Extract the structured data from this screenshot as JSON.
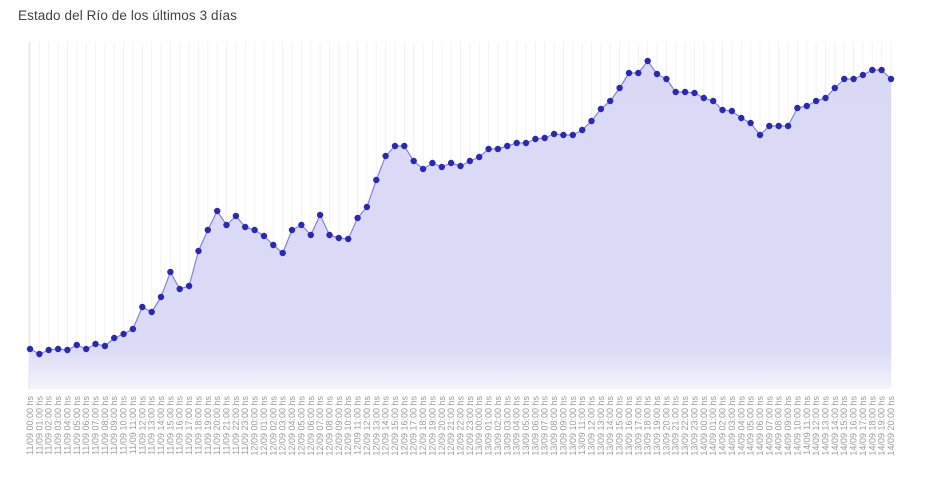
{
  "page": {
    "title": "Estado del Río de los últimos 3 días"
  },
  "chart_data": {
    "type": "area",
    "title": "Estado del Río de los últimos 3 días",
    "xlabel": "",
    "ylabel": "",
    "legend": "none",
    "grid": "vertical-faint",
    "y_tick_labels_visible": false,
    "ylim": [
      0,
      347
    ],
    "x_labels": [
      "11/09 00:00 hs",
      "11/09 01:00 hs",
      "11/09 02:00 hs",
      "11/09 03:00 hs",
      "11/09 04:00 hs",
      "11/09 05:00 hs",
      "11/09 06:00 hs",
      "11/09 07:00 hs",
      "11/09 08:00 hs",
      "11/09 09:00 hs",
      "11/09 10:00 hs",
      "11/09 11:00 hs",
      "11/09 12:00 hs",
      "11/09 13:00 hs",
      "11/09 14:00 hs",
      "11/09 15:00 hs",
      "11/09 16:00 hs",
      "11/09 17:00 hs",
      "11/09 18:00 hs",
      "11/09 19:00 hs",
      "11/09 20:00 hs",
      "11/09 21:00 hs",
      "11/09 22:00 hs",
      "11/09 23:00 hs",
      "12/09 00:00 hs",
      "12/09 01:00 hs",
      "12/09 02:00 hs",
      "12/09 03:00 hs",
      "12/09 04:00 hs",
      "12/09 05:00 hs",
      "12/09 06:00 hs",
      "12/09 07:00 hs",
      "12/09 08:00 hs",
      "12/09 09:00 hs",
      "12/09 10:00 hs",
      "12/09 11:00 hs",
      "12/09 12:00 hs",
      "12/09 13:00 hs",
      "12/09 14:00 hs",
      "12/09 15:00 hs",
      "12/09 16:00 hs",
      "12/09 17:00 hs",
      "12/09 18:00 hs",
      "12/09 19:00 hs",
      "12/09 20:00 hs",
      "12/09 21:00 hs",
      "12/09 22:00 hs",
      "12/09 23:00 hs",
      "13/09 00:00 hs",
      "13/09 01:00 hs",
      "13/09 02:00 hs",
      "13/09 03:00 hs",
      "13/09 04:00 hs",
      "13/09 05:00 hs",
      "13/09 06:00 hs",
      "13/09 07:00 hs",
      "13/09 08:00 hs",
      "13/09 09:00 hs",
      "13/09 10:00 hs",
      "13/09 11:00 hs",
      "13/09 12:00 hs",
      "13/09 13:00 hs",
      "13/09 14:00 hs",
      "13/09 15:00 hs",
      "13/09 16:00 hs",
      "13/09 17:00 hs",
      "13/09 18:00 hs",
      "13/09 19:00 hs",
      "13/09 20:00 hs",
      "13/09 21:00 hs",
      "13/09 22:00 hs",
      "13/09 23:00 hs",
      "14/09 00:00 hs",
      "14/09 01:00 hs",
      "14/09 02:00 hs",
      "14/09 03:00 hs",
      "14/09 04:00 hs",
      "14/09 05:00 hs",
      "14/09 06:00 hs",
      "14/09 07:00 hs",
      "14/09 08:00 hs",
      "14/09 09:00 hs",
      "14/09 10:00 hs",
      "14/09 11:00 hs",
      "14/09 12:00 hs",
      "14/09 13:00 hs",
      "14/09 14:00 hs",
      "14/09 15:00 hs",
      "14/09 16:00 hs",
      "14/09 17:00 hs",
      "14/09 18:00 hs",
      "14/09 19:00 hs",
      "14/09 20:00 hs"
    ],
    "values": [
      40,
      35,
      39,
      40,
      39,
      44,
      40,
      45,
      43,
      51,
      55,
      60,
      82,
      77,
      92,
      117,
      100,
      103,
      138,
      159,
      178,
      164,
      173,
      162,
      159,
      153,
      144,
      136,
      159,
      164,
      154,
      174,
      154,
      151,
      150,
      171,
      182,
      209,
      233,
      243,
      243,
      228,
      220,
      226,
      222,
      226,
      223,
      228,
      232,
      240,
      240,
      243,
      246,
      246,
      250,
      251,
      255,
      254,
      254,
      259,
      268,
      280,
      288,
      301,
      316,
      316,
      328,
      315,
      310,
      297,
      297,
      296,
      291,
      288,
      279,
      278,
      271,
      266,
      254,
      263,
      263,
      263,
      281,
      283,
      288,
      291,
      301,
      310,
      310,
      314,
      319,
      319,
      310
    ],
    "colors": {
      "point": "#2a2aae",
      "line": "#8383dc",
      "fill_top": "#d9d9f6",
      "fill_bottom": "#f3f3fc",
      "gridline": "#f2f2f4",
      "axis": "#e3e3e6",
      "tick_label": "#9b9b9b",
      "title": "#424242"
    }
  }
}
